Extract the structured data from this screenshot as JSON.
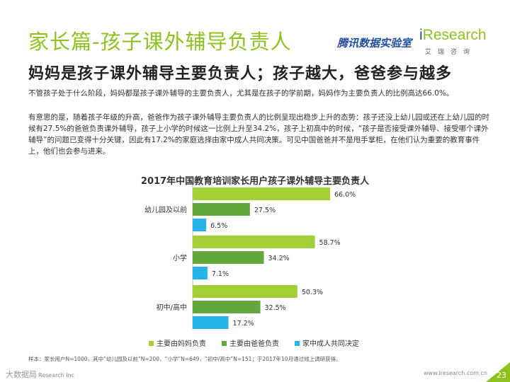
{
  "header": {
    "title": "家长篇-孩子课外辅导负责人",
    "subtitle": "妈妈是孩子课外辅导主要负责人；孩子越大，爸爸参与越多",
    "tencent_logo": "腾讯数据实验室",
    "iresearch_logo_i": "i",
    "iresearch_logo_rest": "Research",
    "iresearch_sub": "艾瑞咨询"
  },
  "paragraphs": {
    "p1": "不管孩子处于什么阶段，妈妈都是孩子课外辅导的主要负责人，尤其是在孩子的学前期，妈妈作为主要负责人的比例高达66.0%。",
    "p2": "有意思的是，随着孩子年级的升高，爸爸作为孩子课外辅导主要负责人的比例呈现出稳步上升的态势：孩子还没上幼儿园或还在上幼儿园的时候有27.5%的爸爸负责课外辅导，孩子上小学的时候这一比例上升至34.2%，孩子上初高中的时候，“孩子是否接受课外辅导、接受哪个课外辅导”的问题已变得十分关键，因此有17.2%的家庭选择由家中成人共同决策。可见中国爸爸并不是甩手掌柜，在他们认为重要的教育事件上，他们也会参与进来。"
  },
  "chart_data": {
    "type": "bar",
    "orientation": "horizontal",
    "title": "2017年中国教育培训家长用户孩子课外辅导主要负责人",
    "categories": [
      "幼儿园及以前",
      "小学",
      "初中/高中"
    ],
    "series": [
      {
        "name": "主要由妈妈负责",
        "values": [
          66.0,
          58.7,
          50.3
        ],
        "color": "#a3cf37"
      },
      {
        "name": "主要由爸爸负责",
        "values": [
          27.5,
          34.2,
          32.5
        ],
        "color": "#62a83c"
      },
      {
        "name": "家中成人共同决定",
        "values": [
          6.5,
          7.1,
          17.2
        ],
        "color": "#23b5e8"
      }
    ],
    "value_format": "%",
    "xlim": [
      0,
      70
    ],
    "grid": false,
    "legend_position": "bottom"
  },
  "note": "样本：家长用户N=1000，其中“幼儿园及以前”N=200，“小学”N=649，“初中/高中”N=151；于2017年10月通过线上调研获得。",
  "footer": {
    "watermark": "大数据局",
    "company": "Research Inc",
    "website": "www.iresearch.com.cn",
    "page_number": "23"
  },
  "colors": {
    "accent_green": "#8dc21f",
    "brand_blue": "#1f4e9c"
  }
}
